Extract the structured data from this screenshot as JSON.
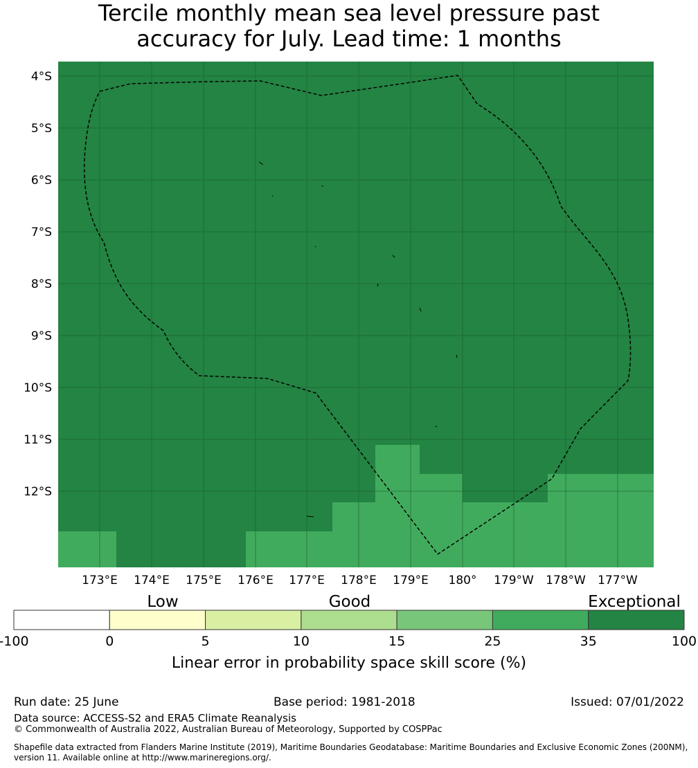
{
  "title_line1": "Tercile monthly mean sea level pressure past",
  "title_line2": "accuracy for July. Lead time: 1 months",
  "map": {
    "lat_labels": [
      "4°S",
      "5°S",
      "6°S",
      "7°S",
      "8°S",
      "9°S",
      "10°S",
      "11°S",
      "12°S"
    ],
    "lon_labels": [
      "173°E",
      "174°E",
      "175°E",
      "176°E",
      "177°E",
      "178°E",
      "179°E",
      "180°",
      "179°W",
      "178°W",
      "177°W"
    ],
    "colors": {
      "exceptional": "#238443",
      "good_25_35": "#41ab5d",
      "boundary": "#000000"
    }
  },
  "colorbar": {
    "categories": [
      "Low",
      "Good",
      "Exceptional"
    ],
    "ticks": [
      "-100",
      "0",
      "5",
      "10",
      "15",
      "25",
      "35",
      "100"
    ],
    "colors": [
      "#ffffff",
      "#ffffcc",
      "#d9f0a3",
      "#addd8e",
      "#78c679",
      "#41ab5d",
      "#238443"
    ],
    "label": "Linear error in probability space skill score (%)"
  },
  "footer": {
    "run_date": "Run date: 25 June",
    "base_period": "Base period: 1981-2018",
    "issued": "Issued: 07/01/2022",
    "data_source": "Data source: ACCESS-S2 and ERA5 Climate Reanalysis",
    "copyright": "© Commonwealth of Australia 2022, Australian Bureau of Meteorology, Supported by COSPPac",
    "shapefile_line1": "Shapefile data extracted from Flanders Marine Institute (2019), Maritime Boundaries Geodatabase: Maritime Boundaries and Exclusive Economic Zones (200NM),",
    "shapefile_line2": "version 11. Available online at http://www.marineregions.org/."
  }
}
